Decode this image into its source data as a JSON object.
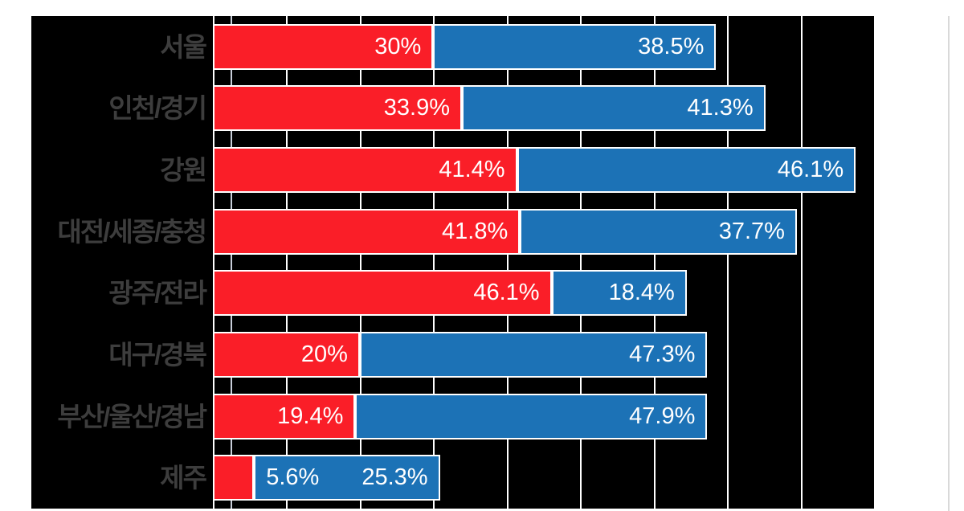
{
  "page": {
    "background": "#ffffff"
  },
  "chart_data": {
    "type": "bar",
    "orientation": "horizontal",
    "stacked": true,
    "title": "",
    "categories": [
      "서울",
      "인천/경기",
      "강원",
      "대전/세종/충청",
      "광주/전라",
      "대구/경북",
      "부산/울산/경남",
      "제주"
    ],
    "series": [
      {
        "name": "red",
        "color": "#fa1e28",
        "values": [
          30,
          33.9,
          41.4,
          41.8,
          46.1,
          20,
          19.4,
          5.6
        ],
        "labels": [
          "30%",
          "33.9%",
          "41.4%",
          "41.8%",
          "46.1%",
          "20%",
          "19.4%",
          "5.6%"
        ]
      },
      {
        "name": "blue",
        "color": "#1c72b6",
        "values": [
          38.5,
          41.3,
          46.1,
          37.7,
          18.4,
          47.3,
          47.9,
          25.3
        ],
        "labels": [
          "38.5%",
          "41.3%",
          "46.1%",
          "37.7%",
          "18.4%",
          "47.3%",
          "47.9%",
          "25.3%"
        ]
      }
    ],
    "xlim": [
      0,
      90
    ],
    "gridline_interval": 10,
    "grid": true,
    "legend_position": "none",
    "value_label_position": "inside-end",
    "colors": {
      "plot_background": "#000000",
      "gridline": "#ffffff",
      "bar_outline": "#ffffff",
      "value_label": "#ffffff",
      "category_label": "#3d3d3d",
      "page_divider": "#d9d9d9"
    }
  }
}
